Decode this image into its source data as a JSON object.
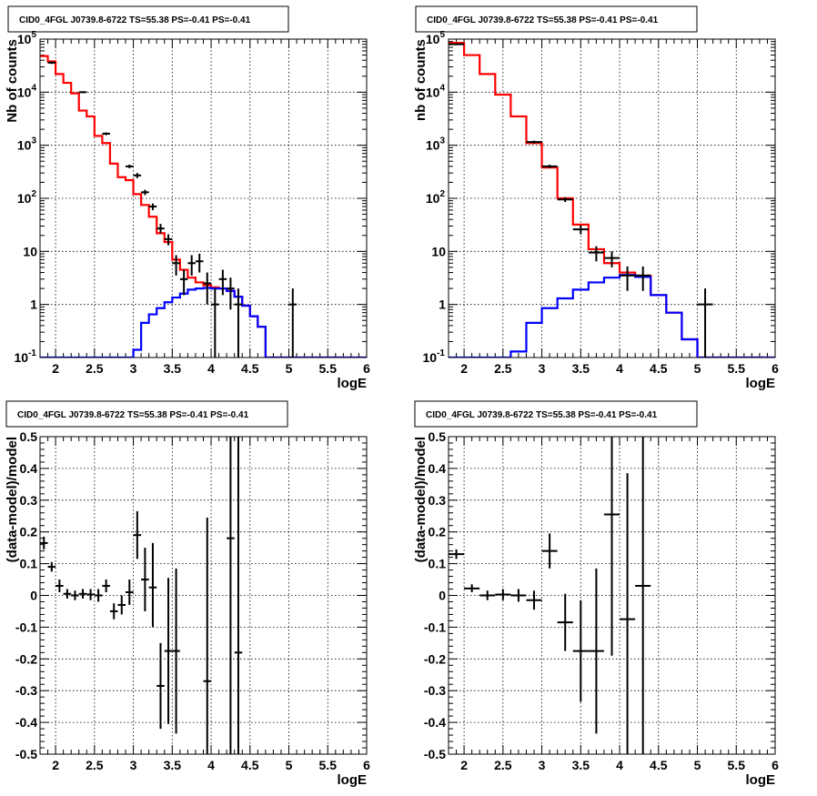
{
  "chart_data": [
    {
      "id": "p1",
      "type": "line",
      "title": "CID0_4FGL J0739.8-6722 TS=55.38 PS=-0.41 PS=-0.41",
      "xlabel": "logE",
      "ylabel": "Nb of counts",
      "xlim": [
        1.8,
        6.0
      ],
      "ylim": [
        0.1,
        100000
      ],
      "yscale": "log",
      "grid": true,
      "x_ticks": [
        "2",
        "2.5",
        "3",
        "3.5",
        "4",
        "4.5",
        "5",
        "5.5",
        "6"
      ],
      "y_ticks": [
        "10^-1",
        "1",
        "10",
        "10^2",
        "10^3",
        "10^4",
        "10^5"
      ],
      "bin_edges": [
        1.8,
        1.9,
        2.0,
        2.1,
        2.2,
        2.3,
        2.4,
        2.5,
        2.6,
        2.7,
        2.8,
        2.9,
        3.0,
        3.1,
        3.2,
        3.3,
        3.4,
        3.5,
        3.6,
        3.7,
        3.8,
        3.9,
        4.0,
        4.1,
        4.2,
        4.3,
        4.4,
        4.5,
        4.6,
        4.7,
        4.8,
        4.9,
        5.0,
        5.1,
        5.2,
        5.3,
        5.4,
        5.5,
        5.6,
        5.7,
        5.8,
        5.9,
        6.0
      ],
      "series": [
        {
          "color": "#ff0000",
          "type": "step",
          "values": [
            48000,
            38000,
            22000,
            15000,
            9500,
            4500,
            3500,
            1500,
            1100,
            450,
            250,
            220,
            120,
            75,
            45,
            22,
            15,
            7,
            4.5,
            3.2,
            2.6,
            2.3,
            2.1,
            2.0,
            1.8,
            1.4,
            0.95,
            0.6,
            0.38,
            0.1,
            0.1,
            0.1,
            0.1,
            0.1,
            0.1,
            0.1,
            0.1,
            0.1,
            0.1,
            0.1,
            0.1,
            0.1
          ]
        },
        {
          "color": "#0000ff",
          "type": "step",
          "values": [
            0.1,
            0.1,
            0.1,
            0.1,
            0.1,
            0.1,
            0.1,
            0.1,
            0.1,
            0.1,
            0.1,
            0.1,
            0.14,
            0.45,
            0.65,
            0.85,
            1.1,
            1.35,
            1.6,
            1.9,
            2.0,
            2.05,
            2.0,
            2.0,
            1.8,
            1.4,
            0.95,
            0.6,
            0.38,
            0.1,
            0.1,
            0.1,
            0.1,
            0.1,
            0.1,
            0.1,
            0.1,
            0.1,
            0.1,
            0.1,
            0.1,
            0.1
          ]
        },
        {
          "color": "#000000",
          "type": "points",
          "points": [
            {
              "x": 1.95,
              "y": 36000,
              "lo": 34000,
              "hi": 38000
            },
            {
              "x": 2.35,
              "y": 10000,
              "lo": 9600,
              "hi": 10400
            },
            {
              "x": 2.65,
              "y": 1650,
              "lo": 1550,
              "hi": 1750
            },
            {
              "x": 2.95,
              "y": 400,
              "lo": 370,
              "hi": 430
            },
            {
              "x": 3.05,
              "y": 270,
              "lo": 240,
              "hi": 300
            },
            {
              "x": 3.15,
              "y": 130,
              "lo": 115,
              "hi": 145
            },
            {
              "x": 3.25,
              "y": 70,
              "lo": 60,
              "hi": 80
            },
            {
              "x": 3.35,
              "y": 27,
              "lo": 22,
              "hi": 33
            },
            {
              "x": 3.45,
              "y": 17,
              "lo": 13,
              "hi": 21
            },
            {
              "x": 3.55,
              "y": 6,
              "lo": 3.5,
              "hi": 8.5
            },
            {
              "x": 3.65,
              "y": 3,
              "lo": 1.5,
              "hi": 4.5
            },
            {
              "x": 3.75,
              "y": 6,
              "lo": 3.5,
              "hi": 8.5
            },
            {
              "x": 3.85,
              "y": 6.5,
              "lo": 4,
              "hi": 9
            },
            {
              "x": 3.95,
              "y": 2.5,
              "lo": 1,
              "hi": 4
            },
            {
              "x": 4.05,
              "y": 1,
              "lo": 0.1,
              "hi": 2
            },
            {
              "x": 4.15,
              "y": 3,
              "lo": 1.5,
              "hi": 4.5
            },
            {
              "x": 4.25,
              "y": 2,
              "lo": 0.8,
              "hi": 3.2
            },
            {
              "x": 4.35,
              "y": 1,
              "lo": 0.1,
              "hi": 2
            },
            {
              "x": 5.05,
              "y": 1,
              "lo": 0.1,
              "hi": 2
            }
          ]
        }
      ]
    },
    {
      "id": "p2",
      "type": "line",
      "title": "CID0_4FGL J0739.8-6722 TS=55.38 PS=-0.41 PS=-0.41",
      "xlabel": "logE",
      "ylabel": "nb of counts",
      "xlim": [
        1.8,
        6.0
      ],
      "ylim": [
        0.1,
        100000
      ],
      "yscale": "log",
      "grid": true,
      "x_ticks": [
        "2",
        "2.5",
        "3",
        "3.5",
        "4",
        "4.5",
        "5",
        "5.5",
        "6"
      ],
      "y_ticks": [
        "10^-1",
        "1",
        "10",
        "10^2",
        "10^3",
        "10^4",
        "10^5"
      ],
      "bin_edges": [
        1.8,
        2.0,
        2.2,
        2.4,
        2.6,
        2.8,
        3.0,
        3.2,
        3.4,
        3.6,
        3.8,
        4.0,
        4.2,
        4.4,
        4.6,
        4.8,
        5.0,
        5.2,
        5.4,
        5.6,
        5.8,
        6.0
      ],
      "series": [
        {
          "color": "#ff0000",
          "type": "step",
          "values": [
            85000,
            50000,
            22000,
            9000,
            3500,
            1100,
            380,
            100,
            32,
            11,
            6,
            4.0,
            3.5,
            1.5,
            0.7,
            0.22,
            0.1,
            0.1,
            0.1,
            0.1,
            0.1
          ]
        },
        {
          "color": "#0000ff",
          "type": "step",
          "values": [
            0.1,
            0.1,
            0.1,
            0.1,
            0.13,
            0.45,
            0.85,
            1.3,
            1.9,
            2.6,
            3.2,
            3.6,
            3.3,
            1.5,
            0.7,
            0.22,
            0.1,
            0.1,
            0.1,
            0.1,
            0.1
          ]
        },
        {
          "color": "#000000",
          "type": "points",
          "points": [
            {
              "x": 1.9,
              "y": 80000,
              "lo": 77000,
              "hi": 83000
            },
            {
              "x": 2.9,
              "y": 1150,
              "lo": 1080,
              "hi": 1220
            },
            {
              "x": 3.1,
              "y": 400,
              "lo": 370,
              "hi": 430
            },
            {
              "x": 3.3,
              "y": 95,
              "lo": 85,
              "hi": 105
            },
            {
              "x": 3.5,
              "y": 26,
              "lo": 21,
              "hi": 31
            },
            {
              "x": 3.7,
              "y": 9.5,
              "lo": 6.5,
              "hi": 12.5
            },
            {
              "x": 3.9,
              "y": 7.5,
              "lo": 5,
              "hi": 10
            },
            {
              "x": 4.1,
              "y": 3.5,
              "lo": 1.8,
              "hi": 5.2
            },
            {
              "x": 4.3,
              "y": 3.5,
              "lo": 1.8,
              "hi": 5.2
            },
            {
              "x": 5.1,
              "y": 1,
              "lo": 0.1,
              "hi": 2
            }
          ]
        }
      ]
    },
    {
      "id": "p3",
      "type": "scatter",
      "title": "CID0_4FGL J0739.8-6722 TS=55.38 PS=-0.41 PS=-0.41",
      "xlabel": "logE",
      "ylabel": "(data-model)/model",
      "xlim": [
        1.8,
        6.0
      ],
      "ylim": [
        -0.5,
        0.5
      ],
      "yscale": "linear",
      "grid": true,
      "x_ticks": [
        "2",
        "2.5",
        "3",
        "3.5",
        "4",
        "4.5",
        "5",
        "5.5",
        "6"
      ],
      "y_ticks": [
        "-0.5",
        "-0.4",
        "-0.3",
        "-0.2",
        "-0.1",
        "0",
        "0.1",
        "0.2",
        "0.3",
        "0.4",
        "0.5"
      ],
      "series": [
        {
          "color": "#000000",
          "type": "points",
          "xhalf": 0.05,
          "points": [
            {
              "x": 1.85,
              "y": 0.165,
              "lo": 0.145,
              "hi": 0.185
            },
            {
              "x": 1.95,
              "y": 0.09,
              "lo": 0.075,
              "hi": 0.105
            },
            {
              "x": 2.05,
              "y": 0.03,
              "lo": 0.01,
              "hi": 0.05
            },
            {
              "x": 2.15,
              "y": 0.005,
              "lo": -0.01,
              "hi": 0.02
            },
            {
              "x": 2.25,
              "y": 0.0,
              "lo": -0.015,
              "hi": 0.015
            },
            {
              "x": 2.35,
              "y": 0.005,
              "lo": -0.01,
              "hi": 0.02
            },
            {
              "x": 2.45,
              "y": 0.003,
              "lo": -0.015,
              "hi": 0.02
            },
            {
              "x": 2.55,
              "y": 0.0,
              "lo": -0.02,
              "hi": 0.02
            },
            {
              "x": 2.65,
              "y": 0.03,
              "lo": 0.01,
              "hi": 0.05
            },
            {
              "x": 2.75,
              "y": -0.05,
              "lo": -0.075,
              "hi": -0.025
            },
            {
              "x": 2.85,
              "y": -0.03,
              "lo": -0.06,
              "hi": 0.0
            },
            {
              "x": 2.95,
              "y": 0.01,
              "lo": -0.03,
              "hi": 0.05
            },
            {
              "x": 3.05,
              "y": 0.19,
              "lo": 0.115,
              "hi": 0.265
            },
            {
              "x": 3.15,
              "y": 0.05,
              "lo": -0.05,
              "hi": 0.15
            },
            {
              "x": 3.25,
              "y": 0.025,
              "lo": -0.1,
              "hi": 0.165
            },
            {
              "x": 3.35,
              "y": -0.285,
              "lo": -0.42,
              "hi": -0.15
            },
            {
              "x": 3.45,
              "y": -0.175,
              "lo": -0.405,
              "hi": 0.055
            },
            {
              "x": 3.55,
              "y": -0.175,
              "lo": -0.435,
              "hi": 0.085
            },
            {
              "x": 3.95,
              "y": -0.27,
              "lo": -0.5,
              "hi": 0.245
            },
            {
              "x": 4.25,
              "y": 0.18,
              "lo": -0.5,
              "hi": 0.5
            },
            {
              "x": 4.35,
              "y": -0.18,
              "lo": -0.5,
              "hi": 0.5
            }
          ]
        }
      ]
    },
    {
      "id": "p4",
      "type": "scatter",
      "title": "CID0_4FGL J0739.8-6722 TS=55.38 PS=-0.41 PS=-0.41",
      "xlabel": "logE",
      "ylabel": "(data-model)/model",
      "xlim": [
        1.8,
        6.0
      ],
      "ylim": [
        -0.5,
        0.5
      ],
      "yscale": "linear",
      "grid": true,
      "x_ticks": [
        "2",
        "2.5",
        "3",
        "3.5",
        "4",
        "4.5",
        "5",
        "5.5",
        "6"
      ],
      "y_ticks": [
        "-0.5",
        "-0.4",
        "-0.3",
        "-0.2",
        "-0.1",
        "0",
        "0.1",
        "0.2",
        "0.3",
        "0.4",
        "0.5"
      ],
      "series": [
        {
          "color": "#000000",
          "type": "points",
          "xhalf": 0.1,
          "points": [
            {
              "x": 1.9,
              "y": 0.13,
              "lo": 0.115,
              "hi": 0.145
            },
            {
              "x": 2.1,
              "y": 0.022,
              "lo": 0.01,
              "hi": 0.035
            },
            {
              "x": 2.3,
              "y": 0.0,
              "lo": -0.015,
              "hi": 0.015
            },
            {
              "x": 2.5,
              "y": 0.003,
              "lo": -0.015,
              "hi": 0.02
            },
            {
              "x": 2.7,
              "y": 0.0,
              "lo": -0.02,
              "hi": 0.02
            },
            {
              "x": 2.9,
              "y": -0.015,
              "lo": -0.045,
              "hi": 0.015
            },
            {
              "x": 3.1,
              "y": 0.14,
              "lo": 0.085,
              "hi": 0.195
            },
            {
              "x": 3.3,
              "y": -0.085,
              "lo": -0.175,
              "hi": 0.005
            },
            {
              "x": 3.5,
              "y": -0.175,
              "lo": -0.335,
              "hi": -0.015
            },
            {
              "x": 3.7,
              "y": -0.175,
              "lo": -0.435,
              "hi": 0.085
            },
            {
              "x": 3.9,
              "y": 0.255,
              "lo": -0.19,
              "hi": 0.5
            },
            {
              "x": 4.1,
              "y": -0.075,
              "lo": -0.5,
              "hi": 0.385
            },
            {
              "x": 4.3,
              "y": 0.03,
              "lo": -0.5,
              "hi": 0.5
            }
          ]
        }
      ]
    }
  ]
}
